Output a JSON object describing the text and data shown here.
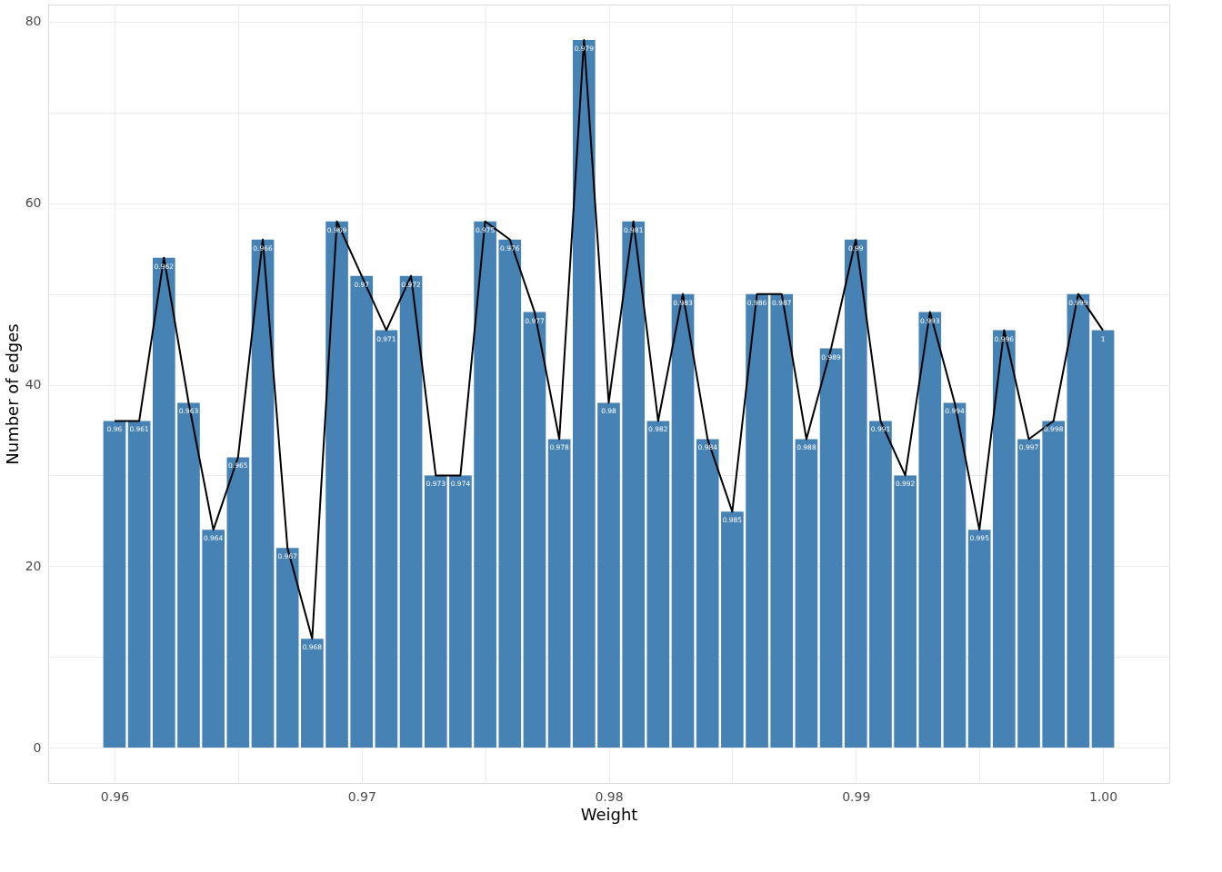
{
  "chart_data": {
    "type": "bar",
    "xlabel": "Weight",
    "ylabel": "Number of edges",
    "x": [
      0.96,
      0.961,
      0.962,
      0.963,
      0.964,
      0.965,
      0.966,
      0.967,
      0.968,
      0.969,
      0.97,
      0.971,
      0.972,
      0.973,
      0.974,
      0.975,
      0.976,
      0.977,
      0.978,
      0.979,
      0.98,
      0.981,
      0.982,
      0.983,
      0.984,
      0.985,
      0.986,
      0.987,
      0.988,
      0.989,
      0.99,
      0.991,
      0.992,
      0.993,
      0.994,
      0.995,
      0.996,
      0.997,
      0.998,
      0.999,
      1.0
    ],
    "series": [
      {
        "color": "#4682b4",
        "values": [
          36,
          36,
          54,
          38,
          24,
          32,
          56,
          22,
          12,
          58,
          52,
          46,
          52,
          30,
          30,
          58,
          56,
          48,
          34,
          78,
          38,
          58,
          36,
          50,
          34,
          26,
          50,
          50,
          34,
          44,
          56,
          36,
          30,
          48,
          38,
          24,
          46,
          34,
          36,
          50,
          46
        ]
      },
      {
        "type": "line",
        "color": "#000000",
        "values": [
          36,
          36,
          54,
          38,
          24,
          32,
          56,
          22,
          12,
          58,
          52,
          46,
          52,
          30,
          30,
          58,
          56,
          48,
          34,
          78,
          38,
          58,
          36,
          50,
          34,
          26,
          50,
          50,
          34,
          44,
          56,
          36,
          30,
          48,
          38,
          24,
          46,
          34,
          36,
          50,
          46
        ]
      }
    ],
    "annotations": [
      {
        "text": "0.96",
        "x": 0.96,
        "y": 36
      },
      {
        "text": "0.961",
        "x": 0.961,
        "y": 36
      },
      {
        "text": "0.962",
        "x": 0.962,
        "y": 54
      },
      {
        "text": "0.963",
        "x": 0.963,
        "y": 38
      },
      {
        "text": "0.964",
        "x": 0.964,
        "y": 24
      },
      {
        "text": "0.965",
        "x": 0.965,
        "y": 32
      },
      {
        "text": "0.966",
        "x": 0.966,
        "y": 56
      },
      {
        "text": "0.967",
        "x": 0.967,
        "y": 22
      },
      {
        "text": "0.968",
        "x": 0.968,
        "y": 12
      },
      {
        "text": "0.969",
        "x": 0.969,
        "y": 58
      },
      {
        "text": "0.97",
        "x": 0.97,
        "y": 52
      },
      {
        "text": "0.971",
        "x": 0.971,
        "y": 46
      },
      {
        "text": "0.972",
        "x": 0.972,
        "y": 52
      },
      {
        "text": "0.973",
        "x": 0.973,
        "y": 30
      },
      {
        "text": "0.974",
        "x": 0.974,
        "y": 30
      },
      {
        "text": "0.975",
        "x": 0.975,
        "y": 58
      },
      {
        "text": "0.976",
        "x": 0.976,
        "y": 56
      },
      {
        "text": "0.977",
        "x": 0.977,
        "y": 48
      },
      {
        "text": "0.978",
        "x": 0.978,
        "y": 34
      },
      {
        "text": "0.979",
        "x": 0.979,
        "y": 78
      },
      {
        "text": "0.98",
        "x": 0.98,
        "y": 38
      },
      {
        "text": "0.981",
        "x": 0.981,
        "y": 58
      },
      {
        "text": "0.982",
        "x": 0.982,
        "y": 36
      },
      {
        "text": "0.983",
        "x": 0.983,
        "y": 50
      },
      {
        "text": "0.984",
        "x": 0.984,
        "y": 34
      },
      {
        "text": "0.985",
        "x": 0.985,
        "y": 26
      },
      {
        "text": "0.986",
        "x": 0.986,
        "y": 50
      },
      {
        "text": "0.987",
        "x": 0.987,
        "y": 50
      },
      {
        "text": "0.988",
        "x": 0.988,
        "y": 34
      },
      {
        "text": "0.989",
        "x": 0.989,
        "y": 44
      },
      {
        "text": "0.99",
        "x": 0.99,
        "y": 56
      },
      {
        "text": "0.991",
        "x": 0.991,
        "y": 36
      },
      {
        "text": "0.992",
        "x": 0.992,
        "y": 30
      },
      {
        "text": "0.993",
        "x": 0.993,
        "y": 48
      },
      {
        "text": "0.994",
        "x": 0.994,
        "y": 38
      },
      {
        "text": "0.995",
        "x": 0.995,
        "y": 24
      },
      {
        "text": "0.996",
        "x": 0.996,
        "y": 46
      },
      {
        "text": "0.997",
        "x": 0.997,
        "y": 34
      },
      {
        "text": "0.998",
        "x": 0.998,
        "y": 36
      },
      {
        "text": "0.999",
        "x": 0.999,
        "y": 50
      },
      {
        "text": "1",
        "x": 1.0,
        "y": 46
      }
    ],
    "xlim": [
      0.9575,
      1.0025
    ],
    "ylim": [
      -3.9,
      81.9
    ],
    "xticks": [
      0.96,
      {
        "value": 0.965,
        "label": null
      },
      0.97,
      {
        "value": 0.975,
        "label": null
      },
      0.98,
      {
        "value": 0.985,
        "label": null
      },
      0.99,
      {
        "value": 0.995,
        "label": null
      },
      {
        "value": 1.0,
        "label": "1.00"
      }
    ],
    "yticks": [
      0,
      {
        "value": 10,
        "label": null
      },
      20,
      {
        "value": 30,
        "label": null
      },
      40,
      {
        "value": 50,
        "label": null
      },
      60,
      {
        "value": 70,
        "label": null
      },
      80
    ],
    "grid": true
  }
}
